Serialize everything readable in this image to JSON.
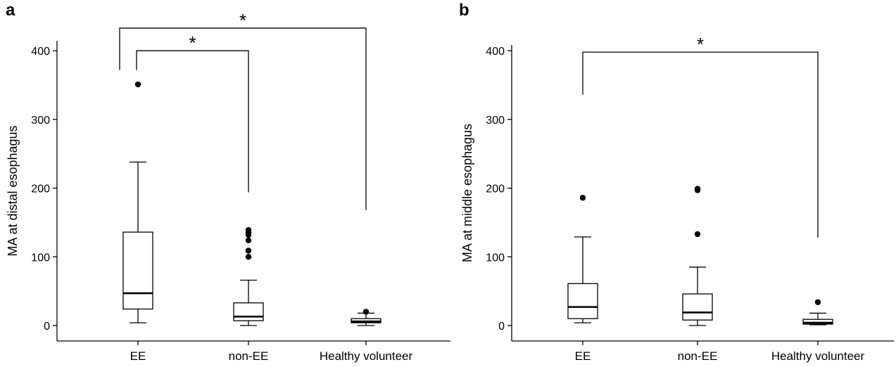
{
  "chart_data": [
    {
      "type": "box",
      "panel_label": "a",
      "title": "",
      "xlabel": "",
      "ylabel": "MA at distal esophagus",
      "categories": [
        "EE",
        "non-EE",
        "Healthy volunteer"
      ],
      "ylim": [
        -22,
        418
      ],
      "yticks": [
        0,
        100,
        200,
        300,
        400
      ],
      "tick_labels": [
        "0",
        "100",
        "200",
        "300",
        "400"
      ],
      "boxes": [
        {
          "min": 4,
          "q1": 24,
          "median": 47,
          "q3": 136,
          "max": 238,
          "outliers": [
            351
          ]
        },
        {
          "min": 0,
          "q1": 7,
          "median": 13,
          "q3": 33,
          "max": 66,
          "outliers": [
            100,
            109,
            124,
            132,
            136,
            139
          ]
        },
        {
          "min": 0,
          "q1": 4,
          "median": 6,
          "q3": 10,
          "max": 18,
          "outliers": [
            20
          ]
        }
      ],
      "significance": [
        {
          "from": "EE",
          "to": "non-EE",
          "label": "*",
          "y": 400,
          "left_end": 372,
          "right_end": 194
        },
        {
          "from": "EE",
          "to": "Healthy volunteer",
          "label": "*",
          "y": 433,
          "left_end": 372,
          "right_end": 168
        }
      ],
      "grid": false,
      "legend": "none"
    },
    {
      "type": "box",
      "panel_label": "b",
      "title": "",
      "xlabel": "",
      "ylabel": "MA at middle esophagus",
      "categories": [
        "EE",
        "non-EE",
        "Healthy volunteer"
      ],
      "ylim": [
        -22,
        418
      ],
      "yticks": [
        0,
        100,
        200,
        300,
        400
      ],
      "tick_labels": [
        "0",
        "100",
        "200",
        "300",
        "400"
      ],
      "boxes": [
        {
          "min": 4,
          "q1": 10,
          "median": 27,
          "q3": 61,
          "max": 129,
          "outliers": [
            186
          ]
        },
        {
          "min": 0,
          "q1": 8,
          "median": 19,
          "q3": 46,
          "max": 85,
          "outliers": [
            133,
            197,
            199
          ]
        },
        {
          "min": 1,
          "q1": 2,
          "median": 4,
          "q3": 9,
          "max": 18,
          "outliers": [
            34
          ]
        }
      ],
      "significance": [
        {
          "from": "EE",
          "to": "Healthy volunteer",
          "label": "*",
          "y": 398,
          "left_end": 336,
          "right_end": 128
        }
      ],
      "grid": false,
      "legend": "none"
    }
  ]
}
